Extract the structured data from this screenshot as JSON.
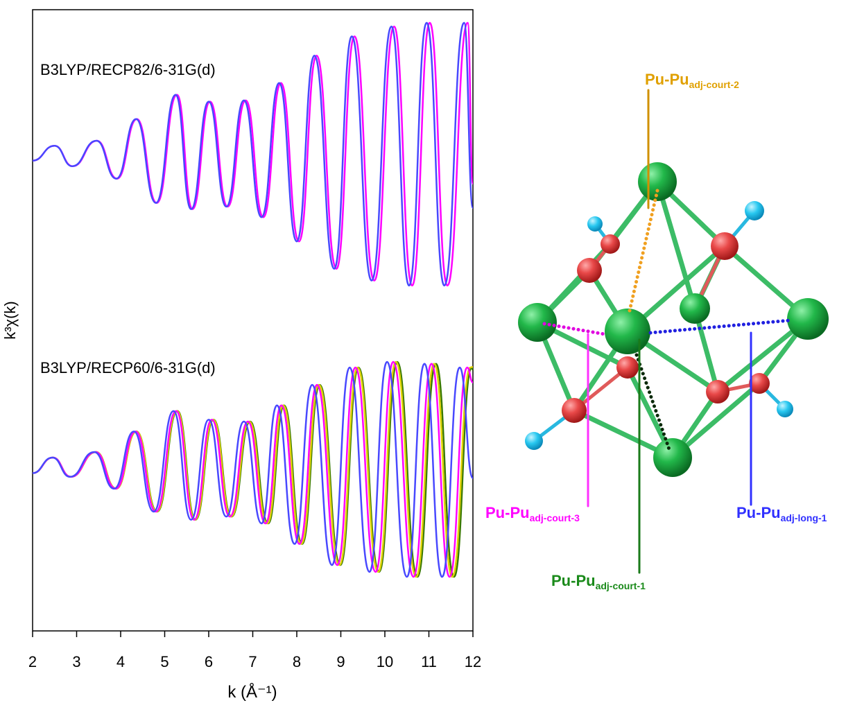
{
  "chart_data": {
    "type": "line",
    "x_label": "k (Å⁻¹)",
    "y_label": "k³χ(k)",
    "annotations": [
      "B3LYP/RECP82/6-31G(d)",
      "B3LYP/RECP60/6-31G(d)"
    ],
    "xlim": [
      2,
      12
    ],
    "xticks": [
      2,
      3,
      4,
      5,
      6,
      7,
      8,
      9,
      10,
      11,
      12
    ],
    "ylim": [
      0,
      100
    ],
    "series": [
      {
        "color": "#ff00ff",
        "x": [
          2,
          2.5,
          2.91,
          3.46,
          3.92,
          4.37,
          4.82,
          5.28,
          5.63,
          6.03,
          6.43,
          6.84,
          7.24,
          7.64,
          8.05,
          8.45,
          8.9,
          9.31,
          9.76,
          10.21,
          10.62,
          11.02,
          11.42,
          11.88,
          12
        ],
        "values": [
          75.7,
          78.1,
          74.8,
          78.9,
          72.8,
          82.4,
          68.9,
          86.3,
          67.9,
          85.2,
          68.3,
          85.4,
          66.6,
          88.2,
          62.7,
          92.6,
          58.3,
          95.7,
          56.4,
          97.3,
          55.6,
          97.9,
          55.6,
          97.9,
          72
        ]
      },
      {
        "color": "#4848ff",
        "x": [
          2,
          2.5,
          2.9,
          3.45,
          3.9,
          4.35,
          4.8,
          5.25,
          5.6,
          6.0,
          6.4,
          6.8,
          7.2,
          7.6,
          8.0,
          8.4,
          8.85,
          9.25,
          9.7,
          10.15,
          10.55,
          10.95,
          11.35,
          11.8,
          12
        ],
        "values": [
          75.7,
          78.1,
          74.8,
          78.9,
          72.8,
          82.4,
          68.9,
          86.3,
          67.9,
          85.2,
          68.3,
          85.4,
          66.6,
          88.2,
          62.7,
          92.6,
          58.3,
          95.7,
          56.4,
          97.3,
          55.6,
          97.9,
          55.6,
          97.9,
          68.1
        ]
      },
      {
        "color": "#3a7a00",
        "x": [
          2,
          2.46,
          2.87,
          3.44,
          3.9,
          4.36,
          4.83,
          5.29,
          5.7,
          6.11,
          6.52,
          6.94,
          7.35,
          7.71,
          8.12,
          8.52,
          8.99,
          9.4,
          9.87,
          10.28,
          10.74,
          11.16,
          11.57,
          11.97,
          12
        ],
        "values": [
          25.4,
          27.9,
          24.8,
          28.8,
          22.9,
          32.1,
          19.2,
          35.4,
          17.9,
          34.0,
          18.4,
          33.7,
          17.3,
          36.3,
          14.0,
          39.6,
          10.6,
          42.4,
          9.5,
          43.3,
          8.7,
          43.0,
          8.7,
          42.4,
          42
        ]
      },
      {
        "color": "#e0d000",
        "x": [
          2,
          2.46,
          2.87,
          3.44,
          3.9,
          4.36,
          4.82,
          5.28,
          5.69,
          6.1,
          6.51,
          6.92,
          7.33,
          7.69,
          8.1,
          8.5,
          8.97,
          9.38,
          9.85,
          10.25,
          10.71,
          11.12,
          11.53,
          11.94,
          12
        ],
        "values": [
          25.4,
          27.9,
          24.8,
          28.8,
          22.9,
          32.1,
          19.2,
          35.4,
          17.9,
          34.0,
          18.4,
          33.7,
          17.3,
          36.3,
          14.0,
          39.6,
          10.6,
          42.4,
          9.5,
          43.3,
          8.7,
          43.0,
          8.7,
          42.4,
          42.5
        ]
      },
      {
        "color": "#ff00ff",
        "x": [
          2,
          2.46,
          2.87,
          3.43,
          3.89,
          4.34,
          4.8,
          5.26,
          5.67,
          6.07,
          6.48,
          6.89,
          7.29,
          7.65,
          8.06,
          8.46,
          8.92,
          9.33,
          9.79,
          10.19,
          10.65,
          11.06,
          11.47,
          11.87,
          12
        ],
        "values": [
          25.4,
          27.9,
          24.8,
          28.8,
          22.9,
          32.1,
          19.2,
          35.4,
          17.9,
          34.0,
          18.4,
          33.7,
          17.3,
          36.3,
          14.0,
          39.6,
          10.6,
          42.4,
          9.5,
          43.3,
          8.7,
          43.0,
          8.7,
          42.4,
          40
        ]
      },
      {
        "color": "#4848ff",
        "x": [
          2,
          2.45,
          2.85,
          3.4,
          3.85,
          4.3,
          4.75,
          5.2,
          5.6,
          6.0,
          6.4,
          6.8,
          7.2,
          7.55,
          7.95,
          8.35,
          8.8,
          9.2,
          9.65,
          10.05,
          10.5,
          10.9,
          11.3,
          11.7,
          12
        ],
        "values": [
          25.4,
          27.9,
          24.8,
          28.8,
          22.9,
          32.1,
          19.2,
          35.4,
          17.9,
          34.0,
          18.4,
          33.7,
          17.3,
          36.3,
          14.0,
          39.6,
          10.6,
          42.4,
          9.5,
          43.3,
          8.7,
          43.0,
          8.7,
          42.4,
          24.6
        ]
      }
    ]
  },
  "diagram": {
    "labels": [
      {
        "main": "Pu-Pu",
        "sub": "adj-court-2"
      },
      {
        "main": "Pu-Pu",
        "sub": "adj-court-3"
      },
      {
        "main": "Pu-Pu",
        "sub": "adj-long-1"
      },
      {
        "main": "Pu-Pu",
        "sub": "adj-court-1"
      }
    ]
  }
}
